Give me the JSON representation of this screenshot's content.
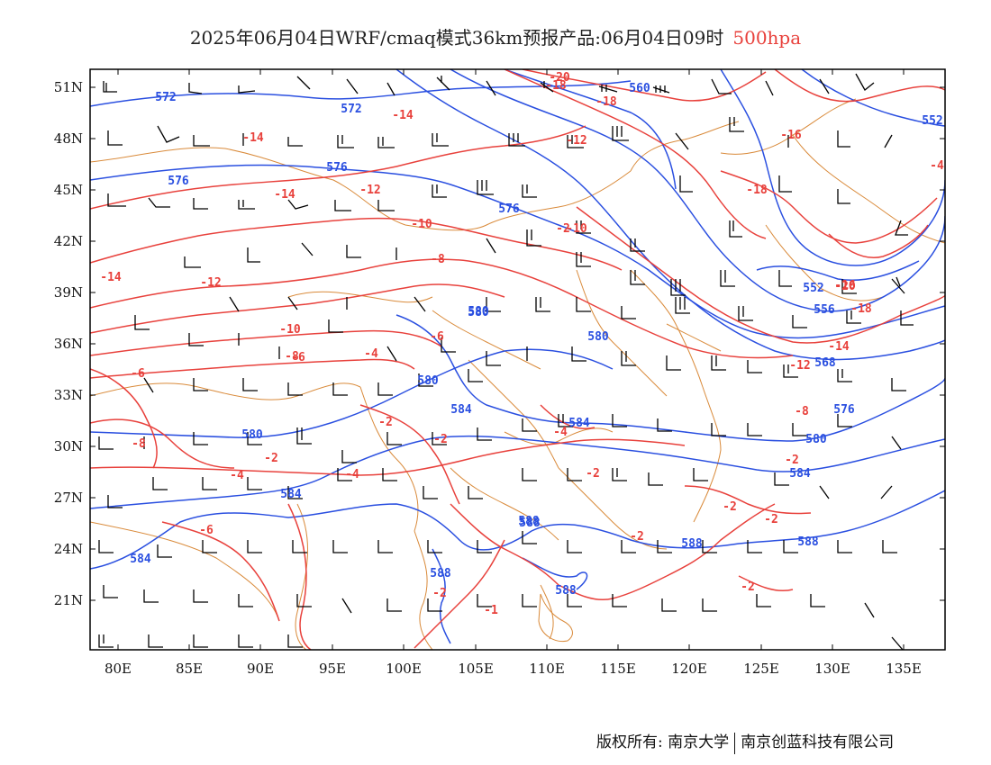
{
  "header": {
    "title_main": "2025年06月04日WRF/cmaq模式36km预报产品:06月04日09时",
    "title_level": "500hpa"
  },
  "axes": {
    "lat_labels": [
      "51N",
      "48N",
      "45N",
      "42N",
      "39N",
      "36N",
      "33N",
      "30N",
      "27N",
      "24N",
      "21N"
    ],
    "lon_labels": [
      "80E",
      "85E",
      "90E",
      "95E",
      "100E",
      "105E",
      "110E",
      "115E",
      "120E",
      "125E",
      "130E",
      "135E"
    ]
  },
  "contours": {
    "height_color": "#2a4fe0",
    "temperature_color": "#e8413c",
    "border_color": "#d98a3a",
    "height_labels": [
      "572",
      "572",
      "576",
      "576",
      "576",
      "580",
      "580",
      "580",
      "580",
      "580",
      "584",
      "584",
      "584",
      "584",
      "588",
      "588",
      "588",
      "588",
      "588",
      "560",
      "556",
      "552",
      "552",
      "568",
      "576",
      "580",
      "584",
      "588"
    ],
    "temperature_labels": [
      "-14",
      "-14",
      "-14",
      "-14",
      "-12",
      "-12",
      "-10",
      "-10",
      "-8",
      "-8",
      "-8",
      "-6",
      "-6",
      "-6",
      "-6",
      "-4",
      "-4",
      "-4",
      "-4",
      "-2",
      "-2",
      "-2",
      "-2",
      "-2",
      "-2",
      "-2",
      "-2",
      "-20",
      "-18",
      "-18",
      "-16",
      "-16",
      "-18",
      "-20",
      "-18",
      "-14",
      "-12",
      "-10",
      "-8",
      "-4",
      "-1",
      "-2",
      "-2",
      "-2",
      "-12",
      "-14"
    ],
    "height_label_text": [
      "572",
      "576",
      "580",
      "584",
      "588",
      "556",
      "552",
      "560",
      "568"
    ]
  },
  "legend": {
    "wind_barb_color": "#000000"
  },
  "footer": {
    "copyright": "版权所有: 南京大学",
    "company": "南京创蓝科技有限公司"
  }
}
